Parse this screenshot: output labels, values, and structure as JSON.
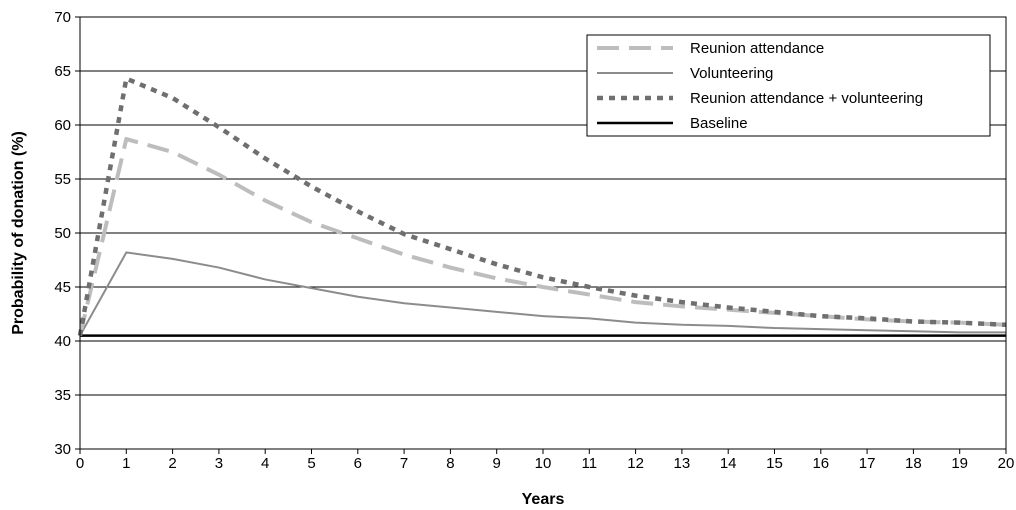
{
  "chart_data": {
    "type": "line",
    "title": "",
    "xlabel": "Years",
    "ylabel": "Probability of donation (%)",
    "xlim": [
      0,
      20
    ],
    "ylim": [
      30,
      70
    ],
    "x_ticks": [
      0,
      1,
      2,
      3,
      4,
      5,
      6,
      7,
      8,
      9,
      10,
      11,
      12,
      13,
      14,
      15,
      16,
      17,
      18,
      19,
      20
    ],
    "y_ticks": [
      30,
      35,
      40,
      45,
      50,
      55,
      60,
      65,
      70
    ],
    "grid": "horizontal",
    "legend_position": "top-right",
    "x": [
      0,
      1,
      2,
      3,
      4,
      5,
      6,
      7,
      8,
      9,
      10,
      11,
      12,
      13,
      14,
      15,
      16,
      17,
      18,
      19,
      20
    ],
    "series": [
      {
        "name": "Reunion attendance",
        "style": "dashed-long",
        "color": "#bdbdbd",
        "values": [
          40.5,
          58.7,
          57.5,
          55.4,
          53.0,
          51.0,
          49.5,
          48.0,
          46.8,
          45.8,
          45.0,
          44.3,
          43.6,
          43.2,
          42.9,
          42.6,
          42.3,
          42.0,
          41.8,
          41.7,
          41.5
        ]
      },
      {
        "name": "Volunteering",
        "style": "solid-thin",
        "color": "#8c8c8c",
        "values": [
          40.5,
          48.2,
          47.6,
          46.8,
          45.7,
          44.9,
          44.1,
          43.5,
          43.1,
          42.7,
          42.3,
          42.1,
          41.7,
          41.5,
          41.4,
          41.2,
          41.1,
          41.0,
          40.9,
          40.8,
          40.8
        ]
      },
      {
        "name": "Reunion attendance + volunteering",
        "style": "dotted",
        "color": "#6f6f6f",
        "values": [
          40.5,
          64.3,
          62.5,
          59.8,
          56.9,
          54.3,
          52.0,
          49.9,
          48.5,
          47.1,
          45.9,
          45.0,
          44.2,
          43.6,
          43.1,
          42.7,
          42.3,
          42.1,
          41.8,
          41.7,
          41.5
        ]
      },
      {
        "name": "Baseline",
        "style": "solid-thick",
        "color": "#000000",
        "values": [
          40.5,
          40.5,
          40.5,
          40.5,
          40.5,
          40.5,
          40.5,
          40.5,
          40.5,
          40.5,
          40.5,
          40.5,
          40.5,
          40.5,
          40.5,
          40.5,
          40.5,
          40.5,
          40.5,
          40.5,
          40.5
        ]
      }
    ]
  }
}
